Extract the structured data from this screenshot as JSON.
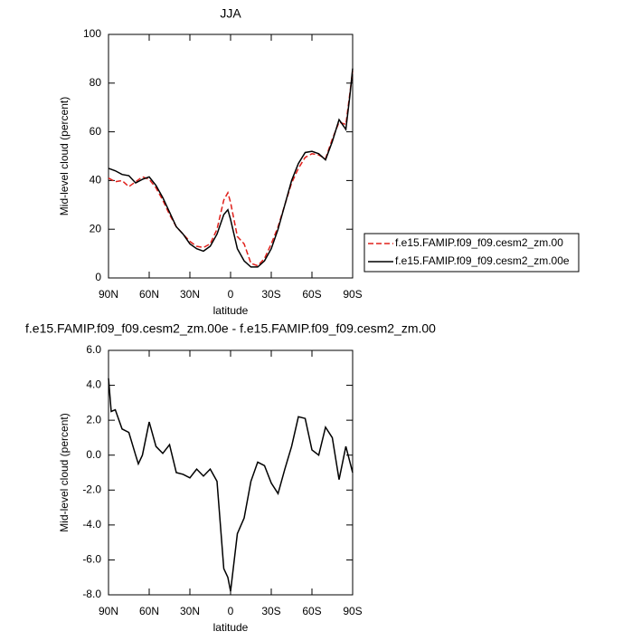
{
  "chart_data": [
    {
      "type": "line",
      "title": "JJA",
      "xlabel": "latitude",
      "ylabel": "Mid-level cloud (percent)",
      "x": [
        90,
        85,
        80,
        75,
        70,
        65,
        60,
        55,
        50,
        45,
        40,
        35,
        30,
        25,
        20,
        15,
        10,
        5,
        2,
        0,
        -5,
        -10,
        -15,
        -20,
        -25,
        -30,
        -35,
        -40,
        -45,
        -50,
        -55,
        -60,
        -65,
        -70,
        -75,
        -80,
        -85,
        -88,
        -90
      ],
      "series": [
        {
          "name": "f.e15.FAMIP.f09_f09.cesm2_zm.00",
          "color": "#e0201b",
          "dashed": true,
          "values": [
            41,
            39.5,
            40,
            37.5,
            39.5,
            41.5,
            40.5,
            37,
            32,
            26,
            21,
            18,
            15,
            13,
            12.5,
            14,
            20,
            32,
            35,
            31,
            17,
            14,
            6,
            5,
            8,
            14,
            21,
            30,
            39,
            45,
            49.5,
            51,
            50.5,
            49,
            57,
            64,
            63,
            76,
            85
          ]
        },
        {
          "name": "f.e15.FAMIP.f09_f09.cesm2_zm.00e",
          "color": "#000000",
          "dashed": false,
          "values": [
            45,
            44,
            42.5,
            42,
            39,
            40.5,
            41.5,
            38,
            33,
            27,
            21,
            18,
            14,
            12,
            11,
            13,
            18,
            26,
            28,
            24,
            12,
            7,
            4.5,
            4.5,
            7,
            12,
            20,
            30,
            40,
            47,
            51.5,
            52,
            51,
            48.5,
            56,
            65,
            61,
            75,
            86
          ]
        }
      ],
      "xlim": [
        90,
        -90
      ],
      "ylim": [
        0,
        100
      ],
      "xticks": [
        {
          "value": 90,
          "label": "90N"
        },
        {
          "value": 60,
          "label": "60N"
        },
        {
          "value": 30,
          "label": "30N"
        },
        0,
        {
          "value": -30,
          "label": "30S"
        },
        {
          "value": -60,
          "label": "60S"
        },
        {
          "value": -90,
          "label": "90S"
        }
      ],
      "yticks": [
        0,
        20,
        40,
        60,
        80,
        100
      ],
      "legend": "right"
    },
    {
      "type": "line",
      "title": "f.e15.FAMIP.f09_f09.cesm2_zm.00e - f.e15.FAMIP.f09_f09.cesm2_zm.00",
      "xlabel": "latitude",
      "ylabel": "Mid-level cloud (percent)",
      "x": [
        90,
        88,
        85,
        80,
        75,
        70,
        68,
        65,
        60,
        55,
        50,
        45,
        40,
        35,
        30,
        25,
        20,
        15,
        10,
        5,
        2,
        0,
        -5,
        -10,
        -15,
        -20,
        -25,
        -30,
        -35,
        -40,
        -45,
        -50,
        -55,
        -60,
        -65,
        -70,
        -75,
        -80,
        -85,
        -90
      ],
      "series": [
        {
          "color": "#000000",
          "dashed": false,
          "values": [
            4.4,
            2.5,
            2.6,
            1.5,
            1.3,
            0.0,
            -0.5,
            0.0,
            1.9,
            0.5,
            0.1,
            0.6,
            -1.0,
            -1.1,
            -1.3,
            -0.8,
            -1.2,
            -0.8,
            -1.5,
            -6.5,
            -7.0,
            -7.8,
            -4.5,
            -3.6,
            -1.5,
            -0.4,
            -0.6,
            -1.6,
            -2.2,
            -0.8,
            0.5,
            2.2,
            2.1,
            0.3,
            0.0,
            1.6,
            1.0,
            -1.4,
            0.5,
            -1.0
          ]
        }
      ],
      "xlim": [
        90,
        -90
      ],
      "ylim": [
        -8,
        6
      ],
      "xticks": [
        {
          "value": 90,
          "label": "90N"
        },
        {
          "value": 60,
          "label": "60N"
        },
        {
          "value": 30,
          "label": "30N"
        },
        0,
        {
          "value": -30,
          "label": "30S"
        },
        {
          "value": -60,
          "label": "60S"
        },
        {
          "value": -90,
          "label": "90S"
        }
      ],
      "yticks": [
        {
          "value": -8,
          "label": "-8.0"
        },
        {
          "value": -6,
          "label": "-6.0"
        },
        {
          "value": -4,
          "label": "-4.0"
        },
        {
          "value": -2,
          "label": "-2.0"
        },
        {
          "value": 0,
          "label": "0.0"
        },
        {
          "value": 2,
          "label": "2.0"
        },
        {
          "value": 4,
          "label": "4.0"
        },
        {
          "value": 6,
          "label": "6.0"
        }
      ]
    }
  ]
}
